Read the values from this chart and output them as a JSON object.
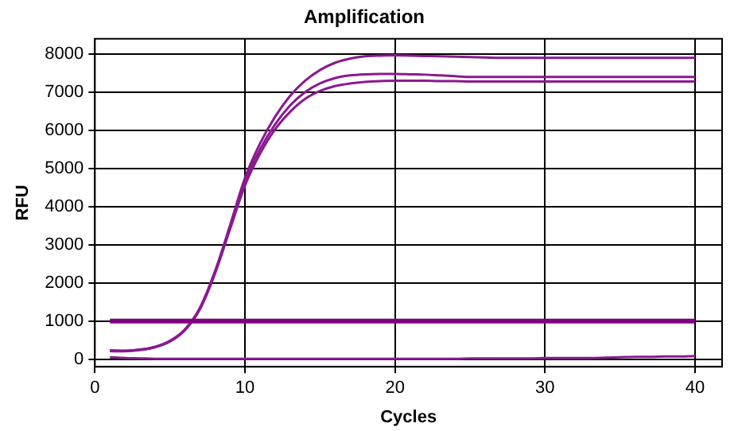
{
  "chart_data": {
    "type": "line",
    "title": "Amplification",
    "xlabel": "Cycles",
    "ylabel": "RFU",
    "x": [
      1,
      2,
      3,
      4,
      5,
      6,
      7,
      8,
      9,
      10,
      11,
      12,
      13,
      14,
      15,
      16,
      17,
      18,
      19,
      20,
      21,
      22,
      23,
      24,
      25,
      26,
      27,
      28,
      29,
      30,
      31,
      32,
      33,
      34,
      35,
      36,
      37,
      38,
      39,
      40
    ],
    "series": [
      {
        "color": "#8a1a8f",
        "values": [
          230,
          220,
          250,
          320,
          480,
          780,
          1350,
          2300,
          3500,
          4750,
          5650,
          6350,
          6900,
          7300,
          7580,
          7770,
          7880,
          7940,
          7960,
          7970,
          7960,
          7950,
          7940,
          7930,
          7920,
          7910,
          7900,
          7900,
          7900,
          7900,
          7900,
          7900,
          7900,
          7900,
          7900,
          7900,
          7900,
          7900,
          7900,
          7900
        ]
      },
      {
        "color": "#8a1a8f",
        "values": [
          220,
          215,
          245,
          315,
          470,
          770,
          1330,
          2270,
          3450,
          4650,
          5500,
          6150,
          6650,
          7000,
          7230,
          7370,
          7440,
          7470,
          7480,
          7480,
          7470,
          7460,
          7440,
          7420,
          7400,
          7400,
          7400,
          7400,
          7400,
          7400,
          7400,
          7400,
          7400,
          7400,
          7400,
          7400,
          7400,
          7400,
          7400,
          7400
        ]
      },
      {
        "color": "#8a1a8f",
        "values": [
          210,
          205,
          240,
          310,
          460,
          760,
          1310,
          2240,
          3400,
          4550,
          5380,
          6020,
          6480,
          6820,
          7030,
          7160,
          7230,
          7270,
          7290,
          7300,
          7300,
          7300,
          7290,
          7290,
          7280,
          7280,
          7280,
          7280,
          7280,
          7280,
          7280,
          7280,
          7280,
          7280,
          7280,
          7280,
          7280,
          7280,
          7280,
          7280
        ]
      },
      {
        "color": "#8a1a8f",
        "values": [
          50,
          30,
          20,
          10,
          10,
          10,
          10,
          10,
          10,
          10,
          10,
          10,
          10,
          10,
          10,
          10,
          10,
          10,
          10,
          10,
          10,
          10,
          10,
          10,
          20,
          20,
          20,
          20,
          20,
          30,
          30,
          30,
          30,
          40,
          50,
          60,
          60,
          70,
          70,
          80
        ]
      }
    ],
    "ref_lines": [
      {
        "axis": "y",
        "value": 1000,
        "color": "#800080"
      }
    ],
    "xlim": [
      0,
      41.8
    ],
    "xticks": [
      0,
      10,
      20,
      30,
      40
    ],
    "ylim": [
      -200,
      8400
    ],
    "yticks": [
      0,
      1000,
      2000,
      3000,
      4000,
      5000,
      6000,
      7000,
      8000
    ],
    "grid": true,
    "legend": false,
    "marker": "none",
    "line_style": "solid"
  }
}
